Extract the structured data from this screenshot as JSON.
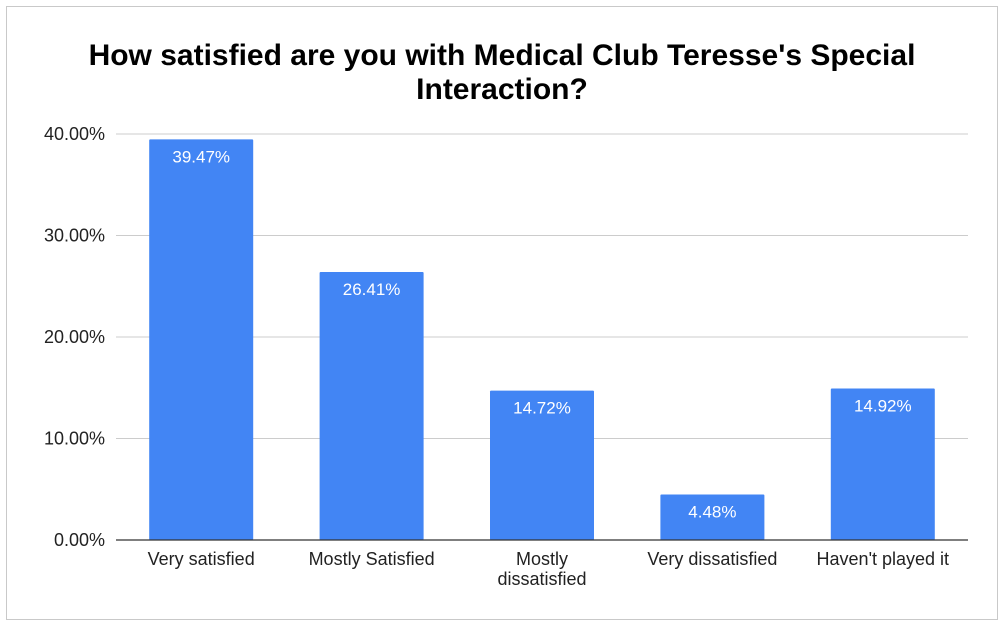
{
  "chart_data": {
    "type": "bar",
    "title_lines": [
      "How satisfied are you with Medical Club Teresse's Special",
      "Interaction?"
    ],
    "categories": [
      [
        "Very satisfied"
      ],
      [
        "Mostly Satisfied"
      ],
      [
        "Mostly",
        "dissatisfied"
      ],
      [
        "Very dissatisfied"
      ],
      [
        "Haven't played it"
      ]
    ],
    "values": [
      39.47,
      26.41,
      14.72,
      4.48,
      14.92
    ],
    "data_labels": [
      "39.47%",
      "26.41%",
      "14.72%",
      "4.48%",
      "14.92%"
    ],
    "y_ticks": [
      0,
      10,
      20,
      30,
      40
    ],
    "y_tick_labels": [
      "0.00%",
      "10.00%",
      "20.00%",
      "30.00%",
      "40.00%"
    ],
    "ylim": [
      0,
      40
    ],
    "xlabel": "",
    "ylabel": "",
    "grid": true,
    "legend": "none",
    "bar_color": "#4285f4",
    "grid_color": "#cccccc",
    "axis_color": "#333333"
  }
}
